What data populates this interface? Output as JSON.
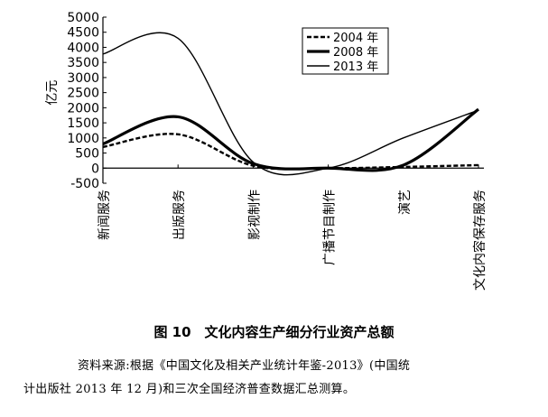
{
  "figure": {
    "caption": "图 10　文化内容生产细分行业资产总额",
    "source_line1": "资料来源:根据《中国文化及相关产业统计年鉴-2013》(中国统",
    "source_line2": "计出版社 2013 年 12 月)和三次全国经济普查数据汇总测算。"
  },
  "chart_data": {
    "type": "line",
    "title": "",
    "xlabel": "",
    "ylabel": "亿元",
    "ylim": [
      -500,
      5000
    ],
    "yticks": [
      -500,
      0,
      500,
      1000,
      1500,
      2000,
      2500,
      3000,
      3500,
      4000,
      4500,
      5000
    ],
    "categories": [
      "新闻服务",
      "出版服务",
      "影视制作",
      "广播节目制作",
      "演艺",
      "文化内容保存服务"
    ],
    "legend_position": "top-right",
    "grid": false,
    "smooth": true,
    "series": [
      {
        "name": "2004 年",
        "style": "dashed",
        "values": [
          700,
          1120,
          80,
          0,
          40,
          100
        ]
      },
      {
        "name": "2008 年",
        "style": "thick",
        "values": [
          800,
          1700,
          150,
          0,
          100,
          1950
        ]
      },
      {
        "name": "2013 年",
        "style": "thin",
        "values": [
          3780,
          4300,
          200,
          0,
          1000,
          1920
        ]
      }
    ]
  }
}
